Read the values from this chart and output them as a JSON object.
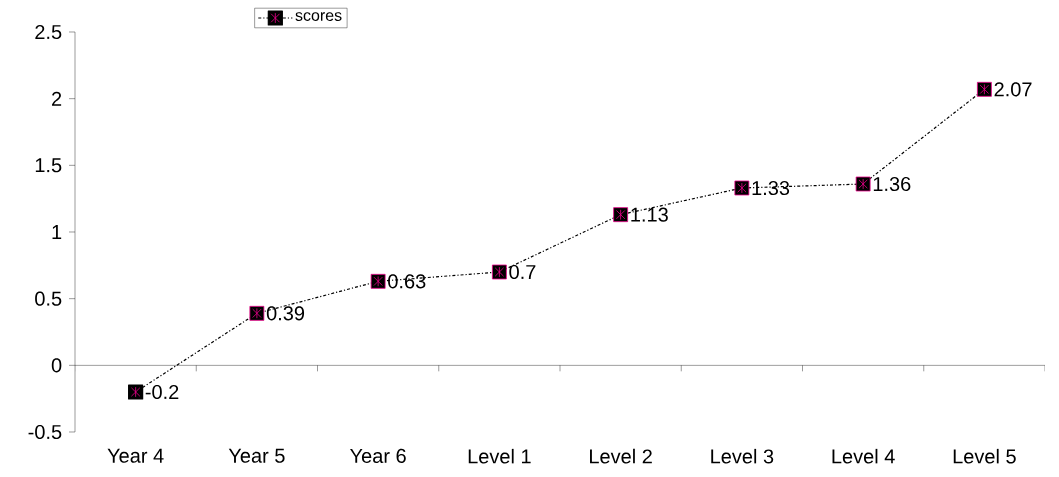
{
  "chart_data": {
    "type": "line",
    "categories": [
      "Year 4",
      "Year 5",
      "Year 6",
      "Level 1",
      "Level 2",
      "Level 3",
      "Level 4",
      "Level 5"
    ],
    "series": [
      {
        "name": "scores",
        "color": "#000000",
        "values": [
          -0.2,
          0.39,
          0.63,
          0.7,
          1.13,
          1.33,
          1.36,
          2.07
        ]
      }
    ],
    "ylim": [
      -0.5,
      2.5
    ],
    "yticks": [
      -0.5,
      0,
      0.5,
      1,
      1.5,
      2,
      2.5
    ],
    "data_labels": true,
    "legend": "top left",
    "marker": "square",
    "line_style": "dashed"
  }
}
